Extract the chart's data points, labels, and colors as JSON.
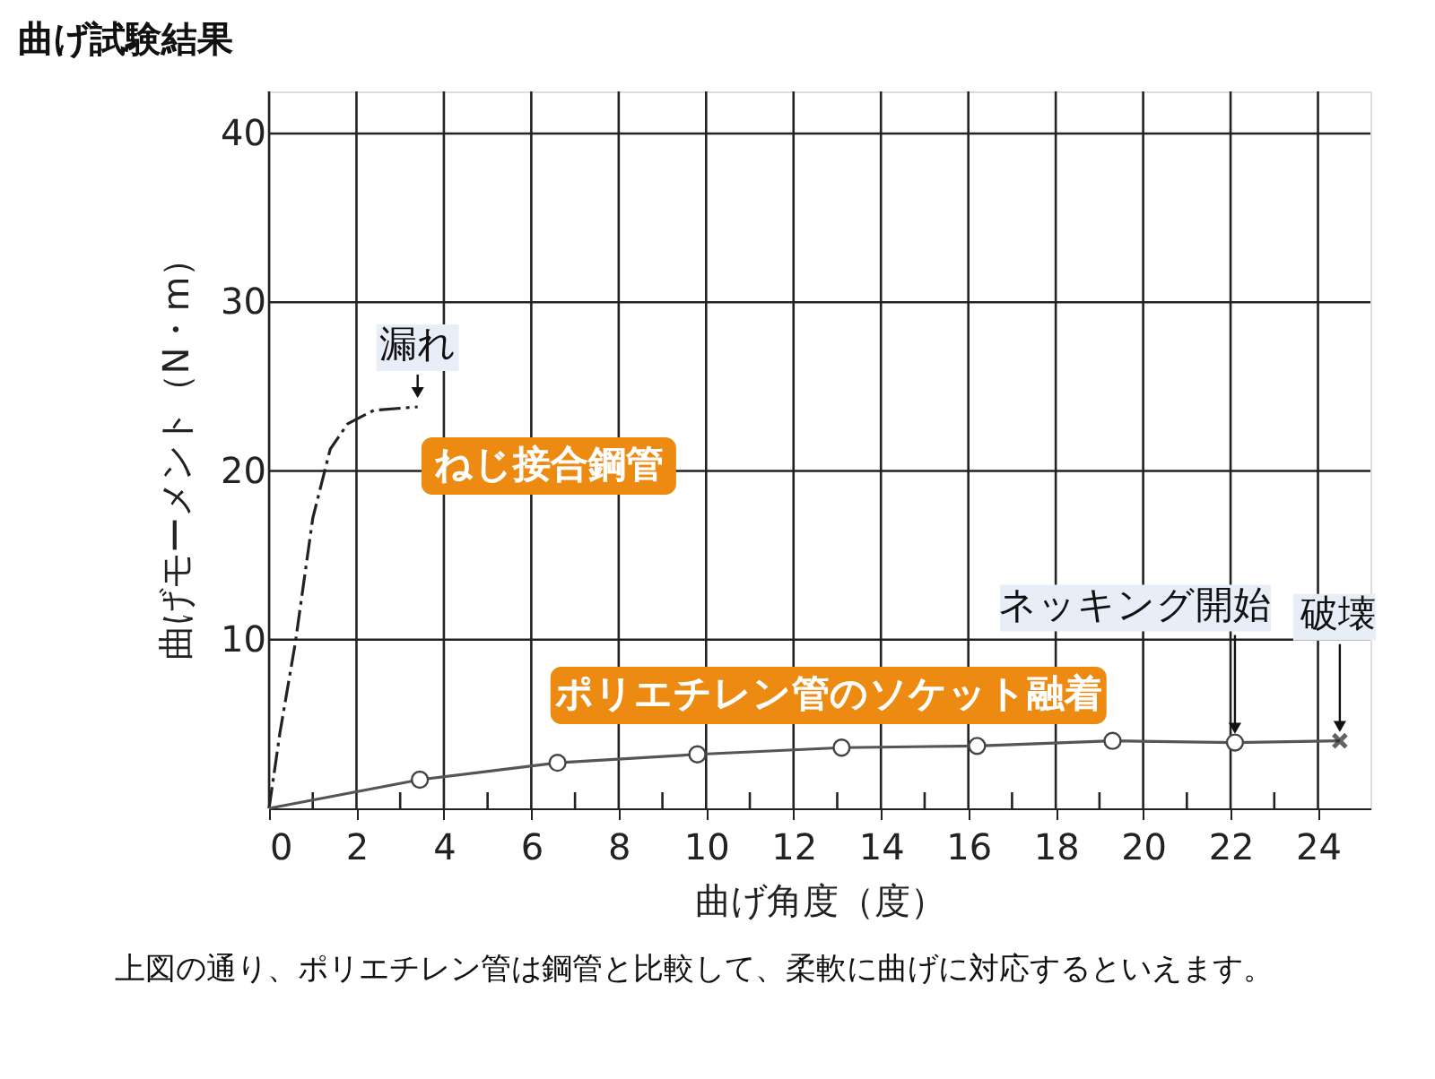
{
  "chart_data": {
    "type": "line",
    "title": "曲げ試験結果",
    "xlabel": "曲げ角度（度）",
    "ylabel": "曲げモーメント（N・m）",
    "xlim": [
      0,
      25.2
    ],
    "ylim": [
      0,
      42.5
    ],
    "xticks": [
      0,
      {
        "value": 1,
        "label": null
      },
      2,
      {
        "value": 3,
        "label": null
      },
      4,
      {
        "value": 5,
        "label": null
      },
      6,
      {
        "value": 7,
        "label": null
      },
      8,
      {
        "value": 9,
        "label": null
      },
      10,
      {
        "value": 11,
        "label": null
      },
      12,
      {
        "value": 13,
        "label": null
      },
      14,
      {
        "value": 15,
        "label": null
      },
      16,
      {
        "value": 17,
        "label": null
      },
      18,
      {
        "value": 19,
        "label": null
      },
      20,
      {
        "value": 21,
        "label": null
      },
      22,
      {
        "value": 23,
        "label": null
      },
      24
    ],
    "yticks": [
      10,
      20,
      30,
      40
    ],
    "grid": true,
    "legend": false,
    "series": [
      {
        "name": "ねじ接合鋼管",
        "color": "#222222",
        "line_style": "dashed",
        "marker": "none",
        "x": [
          0,
          0.25,
          0.6,
          1.0,
          1.4,
          1.8,
          2.4,
          3.4
        ],
        "values": [
          0,
          4.5,
          9.8,
          17.2,
          21.3,
          22.8,
          23.6,
          23.8
        ]
      },
      {
        "name": "ポリエチレン管のソケット融着",
        "color": "#555555",
        "line_style": "solid",
        "marker": "none",
        "x": [
          0,
          3.45,
          6.6,
          9.8,
          13.1,
          16.2,
          19.3,
          22.1,
          24.5
        ],
        "values": [
          0,
          1.7,
          2.7,
          3.2,
          3.6,
          3.7,
          4.0,
          3.9,
          4.0
        ]
      },
      {
        "type": "scatter",
        "color": "#444444",
        "marker": "circle",
        "x": [
          3.45,
          6.6,
          9.8,
          13.1,
          16.2,
          19.3,
          22.1
        ],
        "values": [
          1.7,
          2.7,
          3.2,
          3.6,
          3.7,
          4.0,
          3.9
        ]
      },
      {
        "type": "scatter",
        "color": "#222222",
        "marker": "cross",
        "x": [
          24.5
        ],
        "values": [
          4.0
        ]
      }
    ],
    "annotations": [
      {
        "text": "漏れ",
        "x": 3.4,
        "y": 23.8
      },
      {
        "text": "ネッキング開始",
        "x": 22.1,
        "y": 3.9
      },
      {
        "text": "破壊",
        "x": 24.5,
        "y": 4.0
      },
      "上図の通り、ポリエチレン管は鋼管と比較して、柔軟に曲げに対応するといえます。"
    ]
  }
}
